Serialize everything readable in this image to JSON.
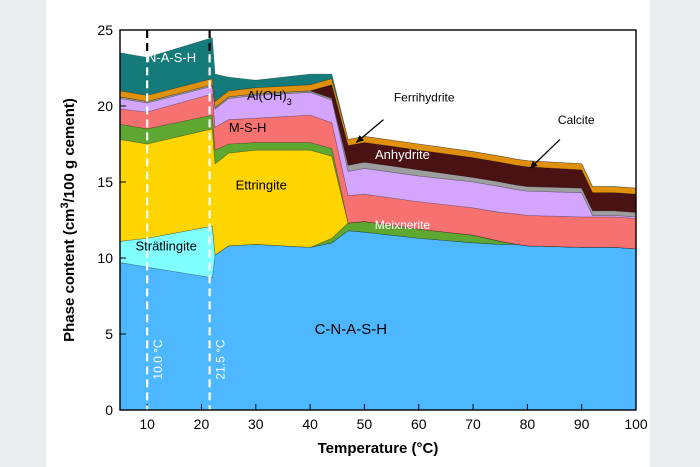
{
  "chart_data": {
    "type": "area",
    "xlabel": "Temperature (°C)",
    "ylabel": "Phase content (cm³/100 g cement)",
    "xlim": [
      5,
      100
    ],
    "ylim": [
      0,
      25
    ],
    "xticks": [
      10,
      20,
      30,
      40,
      50,
      60,
      70,
      80,
      90,
      100
    ],
    "yticks": [
      0,
      5,
      10,
      15,
      20,
      25
    ],
    "grid": false,
    "x": [
      5,
      10,
      22,
      22.5,
      25,
      30,
      40,
      44,
      47,
      50,
      60,
      70,
      75,
      78,
      80,
      90,
      92,
      94,
      96,
      100
    ],
    "series": [
      {
        "name": "C-N-A-S-H",
        "color": "#4db8ff",
        "values": [
          9.7,
          9.4,
          8.7,
          10.2,
          10.8,
          10.9,
          10.7,
          11.0,
          11.8,
          11.7,
          11.3,
          11.0,
          10.9,
          10.9,
          10.8,
          10.7,
          10.7,
          10.7,
          10.7,
          10.6
        ]
      },
      {
        "name": "Strätlingite",
        "color": "#80ffff",
        "values": [
          1.4,
          1.9,
          3.4,
          0,
          0,
          0,
          0,
          0,
          0,
          0,
          0,
          0,
          0,
          0,
          0,
          0,
          0,
          0,
          0,
          0
        ]
      },
      {
        "name": "Meixnerite",
        "color": "#5ea832",
        "values": [
          0,
          0,
          0,
          0,
          0,
          0,
          0,
          0.3,
          0.5,
          0.7,
          0.6,
          0.5,
          0.2,
          0,
          0,
          0,
          0,
          0,
          0,
          0
        ]
      },
      {
        "name": "Ettringite",
        "color": "#ffd500",
        "values": [
          6.7,
          6.2,
          6.4,
          6.0,
          6.1,
          6.2,
          6.4,
          5.4,
          0,
          0,
          0,
          0,
          0,
          0,
          0,
          0,
          0,
          0,
          0,
          0
        ]
      },
      {
        "name": "",
        "color": "#5ea832",
        "values": [
          1.0,
          1.0,
          0.9,
          0.9,
          0.6,
          0.5,
          0.5,
          0.5,
          0,
          0,
          0,
          0,
          0,
          0,
          0,
          0,
          0,
          0,
          0,
          0
        ]
      },
      {
        "name": "M-S-H",
        "color": "#f87171",
        "values": [
          1.0,
          1.1,
          1.4,
          1.5,
          1.6,
          1.6,
          1.8,
          1.7,
          1.8,
          1.8,
          1.8,
          1.8,
          1.9,
          2.0,
          2.0,
          2.0,
          2.0,
          2.0,
          2.0,
          2.0
        ]
      },
      {
        "name": "Al(OH)3",
        "color": "#d4a5ff",
        "values": [
          0.7,
          0.6,
          0.5,
          1.2,
          1.4,
          1.5,
          1.5,
          1.5,
          1.6,
          1.7,
          1.7,
          1.7,
          1.7,
          1.6,
          1.6,
          1.6,
          0.1,
          0.1,
          0.1,
          0.1
        ]
      },
      {
        "name": "Calcite",
        "color": "#9e9e9e",
        "values": [
          0.1,
          0.1,
          0.1,
          0.1,
          0.1,
          0.1,
          0.1,
          0.1,
          0.4,
          0.4,
          0.4,
          0.3,
          0.3,
          0.3,
          0.3,
          0.3,
          0.3,
          0.3,
          0.3,
          0.3
        ]
      },
      {
        "name": "Anhydrite",
        "color": "#4a1212",
        "values": [
          0,
          0,
          0,
          0,
          0,
          0,
          0,
          0.9,
          1.3,
          1.3,
          1.3,
          1.3,
          1.3,
          1.3,
          1.3,
          1.2,
          1.2,
          1.2,
          1.2,
          1.2
        ]
      },
      {
        "name": "Ferrihydrite",
        "color": "#e0900a",
        "values": [
          0.4,
          0.4,
          0.4,
          0.4,
          0.4,
          0.4,
          0.4,
          0.4,
          0.4,
          0.4,
          0.4,
          0.4,
          0.4,
          0.4,
          0.4,
          0.4,
          0.4,
          0.4,
          0.4,
          0.4
        ]
      },
      {
        "name": "N-A-S-H",
        "color": "#147a7a",
        "values": [
          2.5,
          2.5,
          2.7,
          1.8,
          0.9,
          0.5,
          0.7,
          0.3,
          0,
          0,
          0,
          0,
          0,
          0,
          0,
          0,
          0,
          0,
          0,
          0
        ]
      }
    ],
    "annotations": [
      {
        "text": "N-A-S-H",
        "x": 14.5,
        "y": 22.9,
        "color": "#ffffff",
        "size": 13
      },
      {
        "text": "Al(OH)",
        "sub": "3",
        "x": 32.5,
        "y": 20.4,
        "color": "#000000",
        "size": 13
      },
      {
        "text": "M-S-H",
        "x": 28.5,
        "y": 18.3,
        "color": "#000000",
        "size": 13
      },
      {
        "text": "Ettringite",
        "x": 31,
        "y": 14.5,
        "color": "#000000",
        "size": 13
      },
      {
        "text": "Strätlingite",
        "x": 13.5,
        "y": 10.5,
        "color": "#000000",
        "size": 13
      },
      {
        "text": "Meixnerite",
        "x": 57,
        "y": 11.9,
        "color": "#ffffff",
        "size": 12
      },
      {
        "text": "Anhydrite",
        "x": 57,
        "y": 16.5,
        "color": "#ffffff",
        "size": 13
      },
      {
        "text": "C-N-A-S-H",
        "x": 47.5,
        "y": 5.0,
        "color": "#000000",
        "size": 15
      },
      {
        "text": "Ferrihydrite",
        "x": 61,
        "y": 20.3,
        "color": "#000000",
        "size": 12
      },
      {
        "text": "Calcite",
        "x": 89,
        "y": 18.8,
        "color": "#000000",
        "size": 12
      }
    ],
    "arrows": [
      {
        "from": [
          53.5,
          19.1
        ],
        "to": [
          48.5,
          17.6
        ]
      },
      {
        "from": [
          86.0,
          17.8
        ],
        "to": [
          80.5,
          15.9
        ]
      }
    ],
    "vlines": [
      {
        "x": 10.0,
        "label": "10.0 °C"
      },
      {
        "x": 21.5,
        "label": "21.5 °C"
      }
    ]
  }
}
